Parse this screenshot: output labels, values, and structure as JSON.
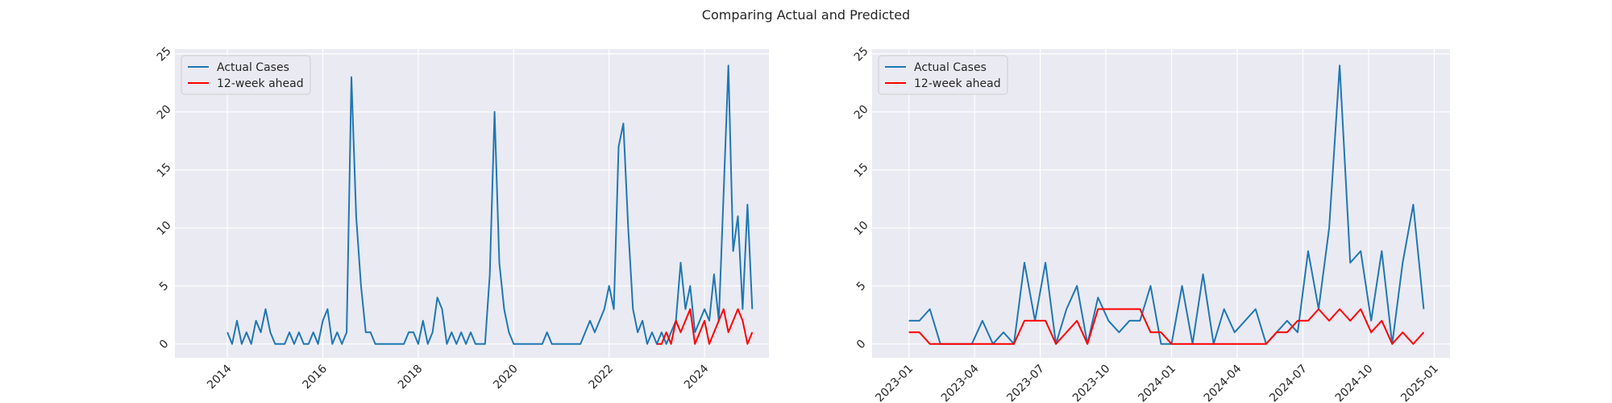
{
  "title": "Comparing Actual and Predicted",
  "chart_data": [
    {
      "type": "line",
      "xlim": [
        2012.9,
        2025.35
      ],
      "ylim": [
        -1.2,
        25.4
      ],
      "xticks": [
        2014,
        2016,
        2018,
        2020,
        2022,
        2024
      ],
      "yticks": [
        0,
        5,
        10,
        15,
        20,
        25
      ],
      "grid": true,
      "legend": "upper left",
      "series": [
        {
          "name": "Actual Cases",
          "color": "#1f77b4",
          "x": [
            2014.0,
            2014.1,
            2014.2,
            2014.3,
            2014.4,
            2014.5,
            2014.6,
            2014.7,
            2014.8,
            2014.9,
            2015.0,
            2015.1,
            2015.2,
            2015.3,
            2015.4,
            2015.5,
            2015.6,
            2015.7,
            2015.8,
            2015.9,
            2016.0,
            2016.1,
            2016.2,
            2016.3,
            2016.4,
            2016.5,
            2016.6,
            2016.7,
            2016.8,
            2016.9,
            2017.0,
            2017.1,
            2017.2,
            2017.3,
            2017.4,
            2017.5,
            2017.6,
            2017.7,
            2017.8,
            2017.9,
            2018.0,
            2018.1,
            2018.2,
            2018.3,
            2018.4,
            2018.5,
            2018.6,
            2018.7,
            2018.8,
            2018.9,
            2019.0,
            2019.1,
            2019.2,
            2019.3,
            2019.4,
            2019.5,
            2019.6,
            2019.7,
            2019.8,
            2019.9,
            2020.0,
            2020.1,
            2020.2,
            2020.3,
            2020.4,
            2020.5,
            2020.6,
            2020.7,
            2020.8,
            2020.9,
            2021.0,
            2021.1,
            2021.2,
            2021.3,
            2021.4,
            2021.5,
            2021.6,
            2021.7,
            2021.8,
            2021.9,
            2022.0,
            2022.1,
            2022.2,
            2022.3,
            2022.4,
            2022.5,
            2022.6,
            2022.7,
            2022.8,
            2022.9,
            2023.0,
            2023.1,
            2023.2,
            2023.3,
            2023.4,
            2023.5,
            2023.6,
            2023.7,
            2023.8,
            2023.9,
            2024.0,
            2024.1,
            2024.2,
            2024.3,
            2024.4,
            2024.5,
            2024.6,
            2024.7,
            2024.8,
            2024.9,
            2025.0
          ],
          "values": [
            1,
            0,
            2,
            0,
            1,
            0,
            2,
            1,
            3,
            1,
            0,
            0,
            0,
            1,
            0,
            1,
            0,
            0,
            1,
            0,
            2,
            3,
            0,
            1,
            0,
            1,
            23,
            11,
            5,
            1,
            1,
            0,
            0,
            0,
            0,
            0,
            0,
            0,
            1,
            1,
            0,
            2,
            0,
            1,
            4,
            3,
            0,
            1,
            0,
            1,
            0,
            1,
            0,
            0,
            0,
            6,
            20,
            7,
            3,
            1,
            0,
            0,
            0,
            0,
            0,
            0,
            0,
            1,
            0,
            0,
            0,
            0,
            0,
            0,
            0,
            1,
            2,
            1,
            2,
            3,
            5,
            3,
            17,
            19,
            10,
            3,
            1,
            2,
            0,
            1,
            0,
            1,
            0,
            1,
            2,
            7,
            3,
            5,
            1,
            2,
            3,
            2,
            6,
            2,
            13,
            24,
            8,
            11,
            3,
            12,
            3
          ]
        },
        {
          "name": "12-week ahead",
          "color": "#ff0000",
          "x": [
            2023.0,
            2023.1,
            2023.2,
            2023.3,
            2023.4,
            2023.5,
            2023.6,
            2023.7,
            2023.8,
            2023.9,
            2024.0,
            2024.1,
            2024.2,
            2024.3,
            2024.4,
            2024.5,
            2024.6,
            2024.7,
            2024.8,
            2024.9,
            2025.0
          ],
          "values": [
            0,
            0,
            1,
            0,
            2,
            1,
            2,
            3,
            0,
            1,
            2,
            0,
            1,
            2,
            3,
            1,
            2,
            3,
            2,
            0,
            1
          ]
        }
      ]
    },
    {
      "type": "line",
      "xlim": [
        2022.86,
        2025.06
      ],
      "ylim": [
        -1.2,
        25.4
      ],
      "xticks": [
        {
          "value": 2023.0,
          "label": "2023-01"
        },
        {
          "value": 2023.25,
          "label": "2023-04"
        },
        {
          "value": 2023.5,
          "label": "2023-07"
        },
        {
          "value": 2023.75,
          "label": "2023-10"
        },
        {
          "value": 2024.0,
          "label": "2024-01"
        },
        {
          "value": 2024.25,
          "label": "2024-04"
        },
        {
          "value": 2024.5,
          "label": "2024-07"
        },
        {
          "value": 2024.75,
          "label": "2024-10"
        },
        {
          "value": 2025.0,
          "label": "2025-01"
        }
      ],
      "yticks": [
        0,
        5,
        10,
        15,
        20,
        25
      ],
      "grid": true,
      "legend": "upper left",
      "x": [
        2023.0,
        2023.04,
        2023.08,
        2023.12,
        2023.16,
        2023.2,
        2023.24,
        2023.28,
        2023.32,
        2023.36,
        2023.4,
        2023.44,
        2023.48,
        2023.52,
        2023.56,
        2023.6,
        2023.64,
        2023.68,
        2023.72,
        2023.76,
        2023.8,
        2023.84,
        2023.88,
        2023.92,
        2023.96,
        2024.0,
        2024.04,
        2024.08,
        2024.12,
        2024.16,
        2024.2,
        2024.24,
        2024.28,
        2024.32,
        2024.36,
        2024.4,
        2024.44,
        2024.48,
        2024.52,
        2024.56,
        2024.6,
        2024.64,
        2024.68,
        2024.72,
        2024.76,
        2024.8,
        2024.84,
        2024.88,
        2024.92,
        2024.96
      ],
      "series": [
        {
          "name": "Actual Cases",
          "color": "#1f77b4",
          "values": [
            2,
            2,
            3,
            0,
            0,
            0,
            0,
            2,
            0,
            1,
            0,
            7,
            2,
            7,
            0,
            3,
            5,
            0,
            4,
            2,
            1,
            2,
            2,
            5,
            0,
            0,
            5,
            0,
            6,
            0,
            3,
            1,
            2,
            3,
            0,
            1,
            2,
            1,
            8,
            3,
            10,
            24,
            7,
            8,
            2,
            8,
            0,
            7,
            12,
            3
          ]
        },
        {
          "name": "12-week ahead",
          "color": "#ff0000",
          "values": [
            1,
            1,
            0,
            0,
            0,
            0,
            0,
            0,
            0,
            0,
            0,
            2,
            2,
            2,
            0,
            1,
            2,
            0,
            3,
            3,
            3,
            3,
            3,
            1,
            1,
            0,
            0,
            0,
            0,
            0,
            0,
            0,
            0,
            0,
            0,
            1,
            1,
            2,
            2,
            3,
            2,
            3,
            2,
            3,
            1,
            2,
            0,
            1,
            0,
            1
          ]
        }
      ]
    }
  ]
}
